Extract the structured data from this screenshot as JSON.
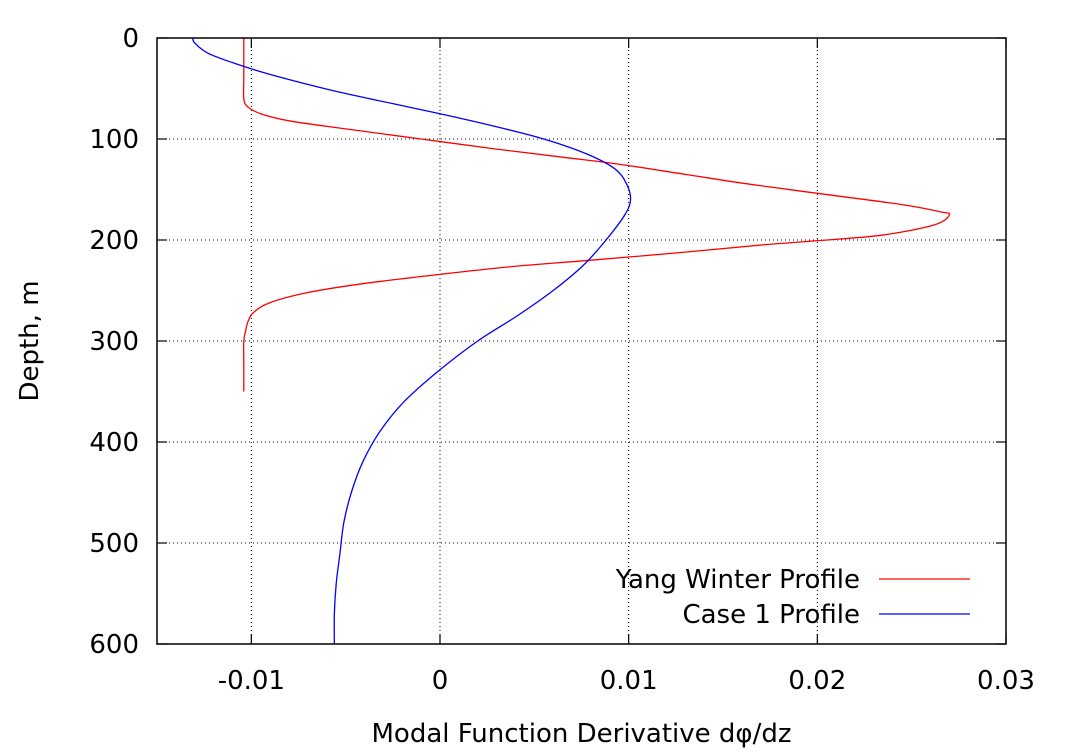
{
  "chart_data": {
    "type": "line",
    "title": "",
    "xlabel": "Modal Function Derivative dφ/dz",
    "ylabel": "Depth, m",
    "xlim": [
      -0.015,
      0.03
    ],
    "ylim": [
      0,
      600
    ],
    "y_inverted": true,
    "grid": true,
    "legend_position": "bottom-right",
    "xticks": [
      -0.01,
      0,
      0.01,
      0.02,
      0.03
    ],
    "xtick_labels": [
      "-0.01",
      "0",
      "0.01",
      "0.02",
      "0.03"
    ],
    "yticks": [
      0,
      100,
      200,
      300,
      400,
      500,
      600
    ],
    "ytick_labels": [
      "0",
      "100",
      "200",
      "300",
      "400",
      "500",
      "600"
    ],
    "series": [
      {
        "name": "Yang Winter Profile",
        "color": "#ff0000",
        "points": [
          [
            -0.0104,
            0
          ],
          [
            -0.0104,
            20
          ],
          [
            -0.0104,
            40
          ],
          [
            -0.0104,
            60
          ],
          [
            -0.0102,
            68
          ],
          [
            -0.0095,
            75
          ],
          [
            -0.008,
            82
          ],
          [
            -0.005,
            90
          ],
          [
            -0.001,
            100
          ],
          [
            0.003,
            110
          ],
          [
            0.0065,
            118
          ],
          [
            0.0095,
            125
          ],
          [
            0.013,
            135
          ],
          [
            0.0165,
            145
          ],
          [
            0.0205,
            155
          ],
          [
            0.0245,
            165
          ],
          [
            0.0265,
            172
          ],
          [
            0.027,
            175
          ],
          [
            0.0262,
            185
          ],
          [
            0.0235,
            195
          ],
          [
            0.0205,
            200
          ],
          [
            0.017,
            205
          ],
          [
            0.013,
            212
          ],
          [
            0.008,
            220
          ],
          [
            0.004,
            226
          ],
          [
            0.0,
            234
          ],
          [
            -0.004,
            243
          ],
          [
            -0.007,
            252
          ],
          [
            -0.009,
            262
          ],
          [
            -0.0099,
            272
          ],
          [
            -0.0102,
            282
          ],
          [
            -0.0103,
            290
          ],
          [
            -0.0104,
            300
          ],
          [
            -0.0104,
            325
          ],
          [
            -0.0104,
            350
          ]
        ]
      },
      {
        "name": "Case 1 Profile",
        "color": "#0000ff",
        "points": [
          [
            -0.0131,
            0
          ],
          [
            -0.013,
            5
          ],
          [
            -0.0123,
            15
          ],
          [
            -0.0109,
            25
          ],
          [
            -0.0092,
            35
          ],
          [
            -0.0072,
            45
          ],
          [
            -0.005,
            55
          ],
          [
            -0.0025,
            65
          ],
          [
            0.0,
            75
          ],
          [
            0.0028,
            87
          ],
          [
            0.0055,
            100
          ],
          [
            0.0078,
            115
          ],
          [
            0.0093,
            130
          ],
          [
            0.0099,
            145
          ],
          [
            0.0101,
            160
          ],
          [
            0.0098,
            175
          ],
          [
            0.0088,
            200
          ],
          [
            0.0076,
            225
          ],
          [
            0.006,
            250
          ],
          [
            0.0041,
            275
          ],
          [
            0.002,
            300
          ],
          [
            -0.0001,
            330
          ],
          [
            -0.0019,
            360
          ],
          [
            -0.0032,
            390
          ],
          [
            -0.0041,
            420
          ],
          [
            -0.0047,
            450
          ],
          [
            -0.0051,
            480
          ],
          [
            -0.0053,
            510
          ],
          [
            -0.0055,
            540
          ],
          [
            -0.0056,
            570
          ],
          [
            -0.0056,
            600
          ]
        ]
      }
    ]
  }
}
